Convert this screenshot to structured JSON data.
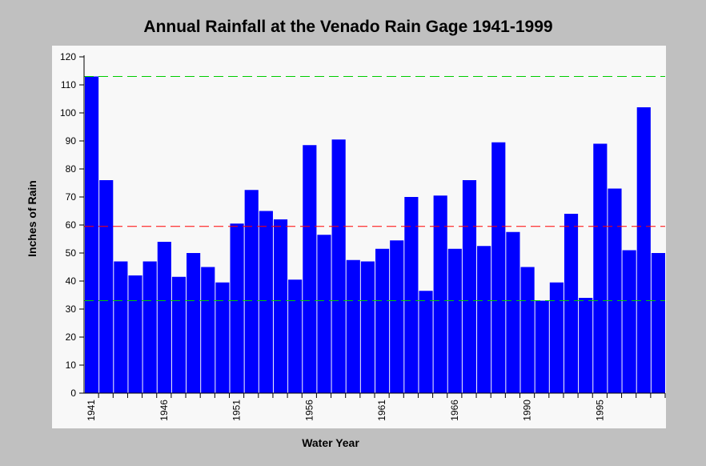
{
  "chart_data": {
    "type": "bar",
    "title": "Annual Rainfall at the Venado Rain Gage 1941-1999",
    "x_label": "Water Year",
    "y_label": "Inches of Rain",
    "categories": [
      "1941",
      null,
      null,
      null,
      null,
      "1946",
      null,
      null,
      null,
      null,
      "1951",
      null,
      null,
      null,
      null,
      "1956",
      null,
      null,
      null,
      null,
      "1961",
      null,
      null,
      null,
      null,
      "1966",
      null,
      null,
      null,
      null,
      "1990",
      null,
      null,
      null,
      null,
      "1995",
      null,
      null,
      null,
      null
    ],
    "values": [
      113,
      76,
      47,
      42,
      47,
      54,
      41.5,
      50,
      45,
      39.5,
      60.5,
      72.5,
      65,
      62,
      40.5,
      88.5,
      56.5,
      90.5,
      47.5,
      47,
      51.5,
      54.5,
      70,
      36.5,
      70.5,
      51.5,
      76,
      52.5,
      89.5,
      57.5,
      45,
      33,
      39.5,
      64,
      34,
      89,
      73,
      51,
      102,
      50
    ],
    "color": "#0000ff",
    "ylim": [
      0,
      120
    ],
    "yticks": [
      0,
      10,
      20,
      30,
      40,
      50,
      60,
      70,
      80,
      90,
      100,
      110,
      120
    ],
    "reference_lines": [
      {
        "value": 113,
        "color": "#00cc00"
      },
      {
        "value": 59.5,
        "color": "#ff0000"
      },
      {
        "value": 33,
        "color": "#00cc00"
      }
    ]
  }
}
